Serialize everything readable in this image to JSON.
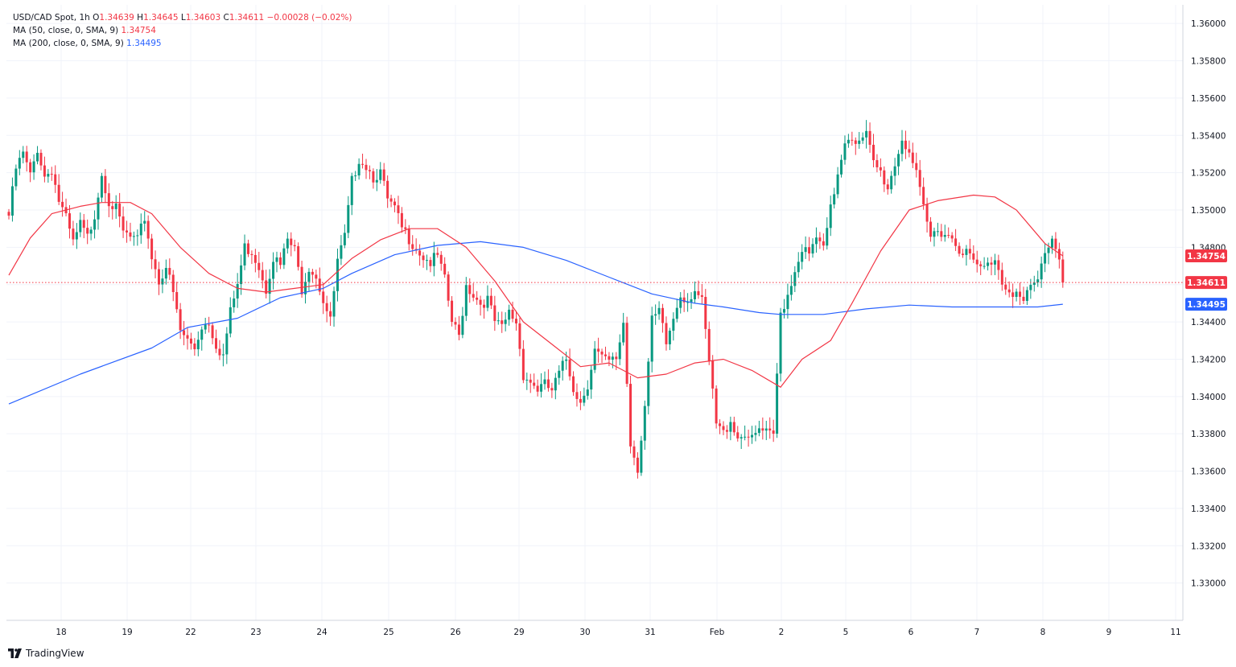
{
  "legend": {
    "symbol": "USD/CAD Spot, 1h",
    "ohlc": {
      "o_label": "O",
      "o": "1.34639",
      "h_label": "H",
      "h": "1.34645",
      "l_label": "L",
      "l": "1.34603",
      "c_label": "C",
      "c": "1.34611",
      "change": "−0.00028 (−0.02%)"
    },
    "ma50": {
      "label": "MA (50, close, 0, SMA, 9)",
      "value": "1.34754"
    },
    "ma200": {
      "label": "MA (200, close, 0, SMA, 9)",
      "value": "1.34495"
    }
  },
  "brand": {
    "name": "TradingView"
  },
  "colors": {
    "up": "#089981",
    "down": "#f23645",
    "ma50": "#f23645",
    "ma200": "#2962ff",
    "grid": "#f0f3fa"
  },
  "chart_data": {
    "type": "candlestick",
    "timeframe": "1h",
    "ylim": [
      1.328,
      1.361
    ],
    "y_ticks": [
      "1.36000",
      "1.35800",
      "1.35600",
      "1.35400",
      "1.35200",
      "1.35000",
      "1.34800",
      "1.34600",
      "1.34400",
      "1.34200",
      "1.34000",
      "1.33800",
      "1.33600",
      "1.33400",
      "1.33200",
      "1.33000"
    ],
    "x_ticks": [
      "18",
      "19",
      "22",
      "23",
      "24",
      "25",
      "26",
      "29",
      "30",
      "31",
      "Feb",
      "2",
      "5",
      "6",
      "7",
      "8",
      "9",
      "11"
    ],
    "price_labels": [
      {
        "name": "ma50",
        "value": 1.34754,
        "text": "1.34754",
        "color": "#f23645"
      },
      {
        "name": "last",
        "value": 1.34611,
        "text": "1.34611",
        "color": "#f23645"
      },
      {
        "name": "ma200",
        "value": 1.34495,
        "text": "1.34495",
        "color": "#2962ff"
      }
    ],
    "last_price": 1.34611,
    "path": [
      [
        0,
        1.3497
      ],
      [
        2,
        1.3522
      ],
      [
        4,
        1.353
      ],
      [
        6,
        1.3518
      ],
      [
        8,
        1.3533
      ],
      [
        10,
        1.3518
      ],
      [
        12,
        1.3522
      ],
      [
        14,
        1.3505
      ],
      [
        16,
        1.3495
      ],
      [
        18,
        1.3482
      ],
      [
        20,
        1.3492
      ],
      [
        22,
        1.3485
      ],
      [
        24,
        1.3498
      ],
      [
        26,
        1.352
      ],
      [
        28,
        1.3505
      ],
      [
        30,
        1.35
      ],
      [
        32,
        1.3488
      ],
      [
        34,
        1.3485
      ],
      [
        36,
        1.3483
      ],
      [
        38,
        1.3496
      ],
      [
        40,
        1.3475
      ],
      [
        42,
        1.3462
      ],
      [
        44,
        1.347
      ],
      [
        46,
        1.3455
      ],
      [
        48,
        1.3435
      ],
      [
        50,
        1.343
      ],
      [
        52,
        1.3426
      ],
      [
        54,
        1.3438
      ],
      [
        56,
        1.344
      ],
      [
        58,
        1.3428
      ],
      [
        60,
        1.3422
      ],
      [
        62,
        1.3445
      ],
      [
        64,
        1.346
      ],
      [
        66,
        1.348
      ],
      [
        68,
        1.3478
      ],
      [
        70,
        1.347
      ],
      [
        72,
        1.3458
      ],
      [
        74,
        1.3475
      ],
      [
        76,
        1.347
      ],
      [
        78,
        1.3484
      ],
      [
        80,
        1.3478
      ],
      [
        82,
        1.3458
      ],
      [
        84,
        1.347
      ],
      [
        86,
        1.3465
      ],
      [
        88,
        1.3452
      ],
      [
        90,
        1.344
      ],
      [
        92,
        1.3472
      ],
      [
        94,
        1.3485
      ],
      [
        96,
        1.3515
      ],
      [
        98,
        1.3528
      ],
      [
        100,
        1.3524
      ],
      [
        102,
        1.3518
      ],
      [
        104,
        1.352
      ],
      [
        106,
        1.3505
      ],
      [
        108,
        1.35
      ],
      [
        110,
        1.349
      ],
      [
        112,
        1.3485
      ],
      [
        114,
        1.348
      ],
      [
        116,
        1.3475
      ],
      [
        118,
        1.3472
      ],
      [
        120,
        1.3475
      ],
      [
        122,
        1.3462
      ],
      [
        124,
        1.344
      ],
      [
        126,
        1.3432
      ],
      [
        128,
        1.346
      ],
      [
        130,
        1.3455
      ],
      [
        132,
        1.345
      ],
      [
        134,
        1.3452
      ],
      [
        136,
        1.344
      ],
      [
        138,
        1.3436
      ],
      [
        140,
        1.3445
      ],
      [
        142,
        1.344
      ],
      [
        144,
        1.3412
      ],
      [
        146,
        1.3408
      ],
      [
        148,
        1.3404
      ],
      [
        150,
        1.3406
      ],
      [
        152,
        1.3403
      ],
      [
        154,
        1.3412
      ],
      [
        156,
        1.342
      ],
      [
        158,
        1.3405
      ],
      [
        160,
        1.3397
      ],
      [
        162,
        1.3407
      ],
      [
        164,
        1.3425
      ],
      [
        166,
        1.342
      ],
      [
        168,
        1.3418
      ],
      [
        170,
        1.342
      ],
      [
        172,
        1.344
      ],
      [
        174,
        1.3375
      ],
      [
        176,
        1.3362
      ],
      [
        178,
        1.3395
      ],
      [
        180,
        1.344
      ],
      [
        182,
        1.3445
      ],
      [
        184,
        1.3428
      ],
      [
        186,
        1.3442
      ],
      [
        188,
        1.3455
      ],
      [
        190,
        1.3452
      ],
      [
        192,
        1.3458
      ],
      [
        194,
        1.345
      ],
      [
        196,
        1.3418
      ],
      [
        198,
        1.3385
      ],
      [
        200,
        1.338
      ],
      [
        202,
        1.3388
      ],
      [
        204,
        1.3378
      ],
      [
        206,
        1.3381
      ],
      [
        208,
        1.3376
      ],
      [
        210,
        1.3382
      ],
      [
        212,
        1.338
      ],
      [
        214,
        1.3378
      ],
      [
        216,
        1.3445
      ],
      [
        218,
        1.3455
      ],
      [
        220,
        1.3468
      ],
      [
        222,
        1.348
      ],
      [
        224,
        1.3475
      ],
      [
        226,
        1.3485
      ],
      [
        228,
        1.3478
      ],
      [
        230,
        1.35
      ],
      [
        232,
        1.352
      ],
      [
        234,
        1.3538
      ],
      [
        236,
        1.354
      ],
      [
        238,
        1.3535
      ],
      [
        240,
        1.354
      ],
      [
        242,
        1.3525
      ],
      [
        244,
        1.352
      ],
      [
        246,
        1.3512
      ],
      [
        248,
        1.3525
      ],
      [
        250,
        1.3538
      ],
      [
        252,
        1.3532
      ],
      [
        254,
        1.3518
      ],
      [
        256,
        1.35
      ],
      [
        258,
        1.3485
      ],
      [
        260,
        1.349
      ],
      [
        262,
        1.3488
      ],
      [
        264,
        1.3485
      ],
      [
        266,
        1.348
      ],
      [
        268,
        1.3477
      ],
      [
        270,
        1.3472
      ],
      [
        272,
        1.3468
      ],
      [
        274,
        1.347
      ],
      [
        276,
        1.3475
      ],
      [
        278,
        1.3462
      ],
      [
        280,
        1.3458
      ],
      [
        282,
        1.3455
      ],
      [
        284,
        1.345
      ],
      [
        286,
        1.3458
      ],
      [
        288,
        1.3462
      ],
      [
        290,
        1.3478
      ],
      [
        292,
        1.3485
      ],
      [
        294,
        1.3475
      ],
      [
        295,
        1.3462
      ]
    ],
    "ma50": [
      [
        0,
        1.3465
      ],
      [
        6,
        1.3485
      ],
      [
        12,
        1.3498
      ],
      [
        20,
        1.3502
      ],
      [
        26,
        1.3504
      ],
      [
        34,
        1.3504
      ],
      [
        40,
        1.3498
      ],
      [
        48,
        1.348
      ],
      [
        56,
        1.3466
      ],
      [
        64,
        1.3458
      ],
      [
        72,
        1.3456
      ],
      [
        80,
        1.3458
      ],
      [
        88,
        1.346
      ],
      [
        96,
        1.3474
      ],
      [
        104,
        1.3484
      ],
      [
        112,
        1.349
      ],
      [
        120,
        1.349
      ],
      [
        128,
        1.348
      ],
      [
        136,
        1.3462
      ],
      [
        144,
        1.344
      ],
      [
        152,
        1.3428
      ],
      [
        160,
        1.3416
      ],
      [
        168,
        1.3418
      ],
      [
        176,
        1.341
      ],
      [
        184,
        1.3412
      ],
      [
        192,
        1.3418
      ],
      [
        200,
        1.342
      ],
      [
        208,
        1.3414
      ],
      [
        216,
        1.3405
      ],
      [
        222,
        1.342
      ],
      [
        230,
        1.343
      ],
      [
        236,
        1.345
      ],
      [
        244,
        1.3478
      ],
      [
        252,
        1.35
      ],
      [
        260,
        1.3505
      ],
      [
        270,
        1.3508
      ],
      [
        276,
        1.3507
      ],
      [
        282,
        1.35
      ],
      [
        290,
        1.3482
      ],
      [
        295,
        1.34754
      ]
    ],
    "ma200": [
      [
        0,
        1.3396
      ],
      [
        20,
        1.3412
      ],
      [
        40,
        1.3426
      ],
      [
        50,
        1.3437
      ],
      [
        64,
        1.3442
      ],
      [
        76,
        1.3453
      ],
      [
        88,
        1.3458
      ],
      [
        96,
        1.3466
      ],
      [
        108,
        1.3476
      ],
      [
        120,
        1.3481
      ],
      [
        132,
        1.3483
      ],
      [
        144,
        1.348
      ],
      [
        156,
        1.3473
      ],
      [
        168,
        1.3464
      ],
      [
        180,
        1.3455
      ],
      [
        192,
        1.345
      ],
      [
        200,
        1.3448
      ],
      [
        210,
        1.3445
      ],
      [
        216,
        1.3444
      ],
      [
        228,
        1.3444
      ],
      [
        240,
        1.3447
      ],
      [
        252,
        1.3449
      ],
      [
        264,
        1.3448
      ],
      [
        276,
        1.3448
      ],
      [
        288,
        1.3448
      ],
      [
        295,
        1.34495
      ]
    ]
  }
}
